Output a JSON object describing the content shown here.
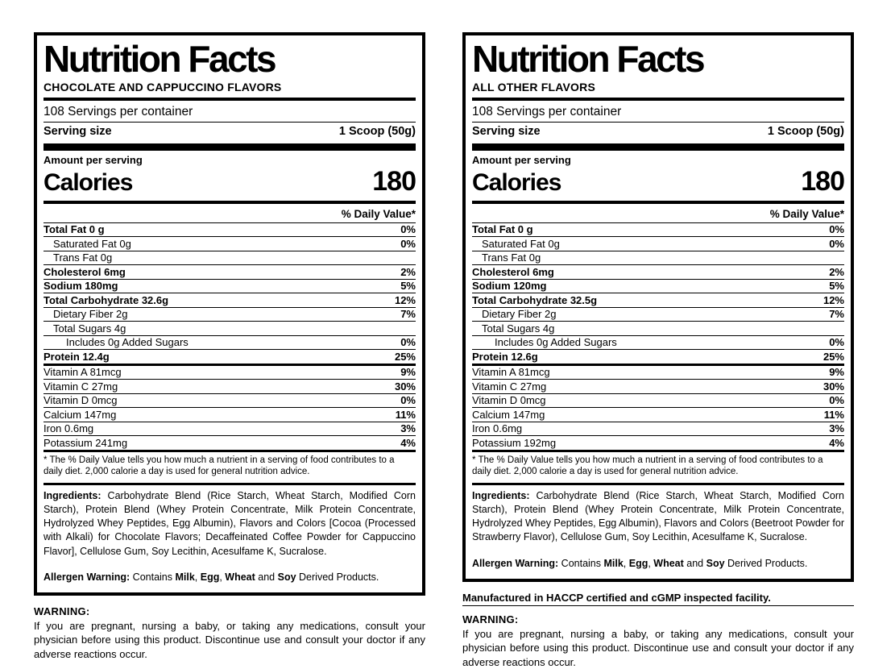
{
  "page": {
    "background": "#ffffff",
    "text_color": "#000000"
  },
  "panels": [
    {
      "title": "Nutrition Facts",
      "flavor": "CHOCOLATE AND CAPPUCCINO FLAVORS",
      "servings_per_container": "108 Servings per container",
      "serving_size_label": "Serving size",
      "serving_size_value": "1 Scoop (50g)",
      "amount_per_serving": "Amount per serving",
      "calories_label": "Calories",
      "calories_value": "180",
      "daily_value_header": "% Daily Value*",
      "rows": [
        {
          "name": "Total Fat 0 g",
          "dv": "0%",
          "bold": true,
          "indent": 0
        },
        {
          "name": "Saturated Fat 0g",
          "dv": "0%",
          "bold": false,
          "indent": 1
        },
        {
          "name": "Trans Fat 0g",
          "dv": "",
          "bold": false,
          "indent": 1
        },
        {
          "name": "Cholesterol 6mg",
          "dv": "2%",
          "bold": true,
          "indent": 0
        },
        {
          "name": "Sodium 180mg",
          "dv": "5%",
          "bold": true,
          "indent": 0
        },
        {
          "name": "Total Carbohydrate 32.6g",
          "dv": "12%",
          "bold": true,
          "indent": 0
        },
        {
          "name": "Dietary Fiber 2g",
          "dv": "7%",
          "bold": false,
          "indent": 1
        },
        {
          "name": "Total Sugars 4g",
          "dv": "",
          "bold": false,
          "indent": 1
        },
        {
          "name": "Includes 0g Added Sugars",
          "dv": "0%",
          "bold": false,
          "indent": 2
        },
        {
          "name": "Protein 12.4g",
          "dv": "25%",
          "bold": true,
          "indent": 0,
          "sep_after": "medium"
        },
        {
          "name": "Vitamin A 81mcg",
          "dv": "9%",
          "bold": false,
          "indent": 0
        },
        {
          "name": "Vitamin C 27mg",
          "dv": "30%",
          "bold": false,
          "indent": 0
        },
        {
          "name": "Vitamin D 0mcg",
          "dv": "0%",
          "bold": false,
          "indent": 0
        },
        {
          "name": "Calcium 147mg",
          "dv": "11%",
          "bold": false,
          "indent": 0
        },
        {
          "name": "Iron 0.6mg",
          "dv": "3%",
          "bold": false,
          "indent": 0
        },
        {
          "name": "Potassium 241mg",
          "dv": "4%",
          "bold": false,
          "indent": 0,
          "sep_after": "medium"
        }
      ],
      "footnote": "* The % Daily Value tells you how much a nutrient in a serving of food contributes to a daily diet. 2,000 calorie a day is used for general nutrition advice.",
      "ingredients": [
        {
          "text": "Ingredients:",
          "bold": true
        },
        {
          "text": " Carbohydrate Blend (Rice Starch, Wheat Starch, Modified Corn Starch), Protein Blend (Whey Protein Concentrate, Milk Protein Concentrate, Hydrolyzed Whey Peptides, Egg Albumin), Flavors and Colors [Cocoa (Processed with Alkali) for Chocolate Flavors; Decaffeinated Coffee Powder for Cappuccino Flavor], Cellulose Gum, Soy Lecithin, Acesulfame K, Sucralose.",
          "bold": false
        }
      ],
      "allergen": [
        {
          "text": "Allergen Warning:",
          "bold": true
        },
        {
          "text": " Contains ",
          "bold": false
        },
        {
          "text": "Milk",
          "bold": true
        },
        {
          "text": ", ",
          "bold": false
        },
        {
          "text": "Egg",
          "bold": true
        },
        {
          "text": ", ",
          "bold": false
        },
        {
          "text": "Wheat",
          "bold": true
        },
        {
          "text": " and ",
          "bold": false
        },
        {
          "text": "Soy",
          "bold": true
        },
        {
          "text": " Derived Products.",
          "bold": false
        }
      ],
      "below": {
        "warning_title": "WARNING:",
        "warning_text": "If you are pregnant, nursing a baby, or taking any medications, consult your physician before using this product. Discontinue use and consult your doctor if any adverse reactions occur."
      }
    },
    {
      "title": "Nutrition Facts",
      "flavor": "ALL OTHER FLAVORS",
      "servings_per_container": "108 Servings per container",
      "serving_size_label": "Serving size",
      "serving_size_value": "1 Scoop (50g)",
      "amount_per_serving": "Amount per serving",
      "calories_label": "Calories",
      "calories_value": "180",
      "daily_value_header": "% Daily Value*",
      "rows": [
        {
          "name": "Total Fat 0 g",
          "dv": "0%",
          "bold": true,
          "indent": 0
        },
        {
          "name": "Saturated Fat 0g",
          "dv": "0%",
          "bold": false,
          "indent": 1
        },
        {
          "name": "Trans Fat 0g",
          "dv": "",
          "bold": false,
          "indent": 1
        },
        {
          "name": "Cholesterol 6mg",
          "dv": "2%",
          "bold": true,
          "indent": 0
        },
        {
          "name": "Sodium 120mg",
          "dv": "5%",
          "bold": true,
          "indent": 0
        },
        {
          "name": "Total Carbohydrate 32.5g",
          "dv": "12%",
          "bold": true,
          "indent": 0
        },
        {
          "name": "Dietary Fiber 2g",
          "dv": "7%",
          "bold": false,
          "indent": 1
        },
        {
          "name": "Total Sugars 4g",
          "dv": "",
          "bold": false,
          "indent": 1
        },
        {
          "name": "Includes 0g Added Sugars",
          "dv": "0%",
          "bold": false,
          "indent": 2
        },
        {
          "name": "Protein 12.6g",
          "dv": "25%",
          "bold": true,
          "indent": 0,
          "sep_after": "medium"
        },
        {
          "name": "Vitamin A 81mcg",
          "dv": "9%",
          "bold": false,
          "indent": 0
        },
        {
          "name": "Vitamin C 27mg",
          "dv": "30%",
          "bold": false,
          "indent": 0
        },
        {
          "name": "Vitamin D 0mcg",
          "dv": "0%",
          "bold": false,
          "indent": 0
        },
        {
          "name": "Calcium 147mg",
          "dv": "11%",
          "bold": false,
          "indent": 0
        },
        {
          "name": "Iron 0.6mg",
          "dv": "3%",
          "bold": false,
          "indent": 0
        },
        {
          "name": "Potassium 192mg",
          "dv": "4%",
          "bold": false,
          "indent": 0,
          "sep_after": "medium"
        }
      ],
      "footnote": "* The % Daily Value tells you how much a nutrient in a serving of food contributes to a daily diet. 2,000 calorie a day is used for general nutrition advice.",
      "ingredients": [
        {
          "text": "Ingredients:",
          "bold": true
        },
        {
          "text": " Carbohydrate Blend (Rice Starch, Wheat Starch, Modified Corn Starch), Protein Blend (Whey Protein Concentrate, Milk Protein Concentrate, Hydrolyzed Whey Peptides, Egg Albumin), Flavors and Colors (Beetroot Powder for Strawberry Flavor), Cellulose Gum, Soy Lecithin, Acesulfame K, Sucralose.",
          "bold": false
        }
      ],
      "allergen": [
        {
          "text": "Allergen Warning:",
          "bold": true
        },
        {
          "text": " Contains ",
          "bold": false
        },
        {
          "text": "Milk",
          "bold": true
        },
        {
          "text": ", ",
          "bold": false
        },
        {
          "text": "Egg",
          "bold": true
        },
        {
          "text": ", ",
          "bold": false
        },
        {
          "text": "Wheat",
          "bold": true
        },
        {
          "text": " and ",
          "bold": false
        },
        {
          "text": "Soy",
          "bold": true
        },
        {
          "text": " Derived Products.",
          "bold": false
        }
      ],
      "below": {
        "manufactured": "Manufactured in HACCP certified and cGMP inspected facility.",
        "warning_title": "WARNING:",
        "warning_text": "If you are pregnant, nursing a baby, or taking any medications, consult your physician before using this product. Discontinue use and consult your doctor if any adverse reactions occur."
      }
    }
  ]
}
